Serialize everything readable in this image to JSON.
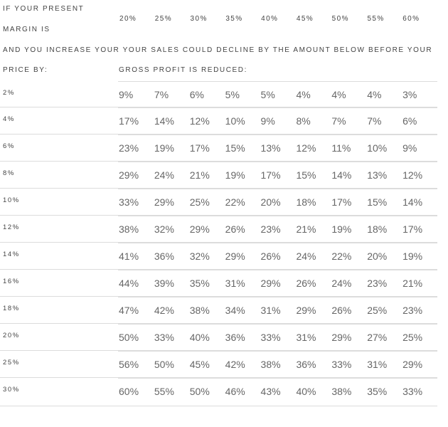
{
  "header": {
    "line1": "IF YOUR PRESENT",
    "line2": "MARGIN IS",
    "line3": "AND YOU INCREASE YOUR YOUR SALES COULD DECLINE BY THE AMOUNT BELOW BEFORE YOUR",
    "line4": "PRICE BY:",
    "reduced": "GROSS PROFIT IS REDUCED:"
  },
  "margins": [
    "20%",
    "25%",
    "30%",
    "35%",
    "40%",
    "45%",
    "50%",
    "55%",
    "60%"
  ],
  "rows": [
    {
      "increase": "2%",
      "values": [
        "9%",
        "7%",
        "6%",
        "5%",
        "5%",
        "4%",
        "4%",
        "4%",
        "3%"
      ]
    },
    {
      "increase": "4%",
      "values": [
        "17%",
        "14%",
        "12%",
        "10%",
        "9%",
        "8%",
        "7%",
        "7%",
        "6%"
      ]
    },
    {
      "increase": "6%",
      "values": [
        "23%",
        "19%",
        "17%",
        "15%",
        "13%",
        "12%",
        "11%",
        "10%",
        "9%"
      ]
    },
    {
      "increase": "8%",
      "values": [
        "29%",
        "24%",
        "21%",
        "19%",
        "17%",
        "15%",
        "14%",
        "13%",
        "12%"
      ]
    },
    {
      "increase": "10%",
      "values": [
        "33%",
        "29%",
        "25%",
        "22%",
        "20%",
        "18%",
        "17%",
        "15%",
        "14%"
      ]
    },
    {
      "increase": "12%",
      "values": [
        "38%",
        "32%",
        "29%",
        "26%",
        "23%",
        "21%",
        "19%",
        "18%",
        "17%"
      ]
    },
    {
      "increase": "14%",
      "values": [
        "41%",
        "36%",
        "32%",
        "29%",
        "26%",
        "24%",
        "22%",
        "20%",
        "19%"
      ]
    },
    {
      "increase": "16%",
      "values": [
        "44%",
        "39%",
        "35%",
        "31%",
        "29%",
        "26%",
        "24%",
        "23%",
        "21%"
      ]
    },
    {
      "increase": "18%",
      "values": [
        "47%",
        "42%",
        "38%",
        "34%",
        "31%",
        "29%",
        "26%",
        "25%",
        "23%"
      ]
    },
    {
      "increase": "20%",
      "values": [
        "50%",
        "33%",
        "40%",
        "36%",
        "33%",
        "31%",
        "29%",
        "27%",
        "25%"
      ]
    },
    {
      "increase": "25%",
      "values": [
        "56%",
        "50%",
        "45%",
        "42%",
        "38%",
        "36%",
        "33%",
        "31%",
        "29%"
      ]
    },
    {
      "increase": "30%",
      "values": [
        "60%",
        "55%",
        "50%",
        "46%",
        "43%",
        "40%",
        "38%",
        "35%",
        "33%"
      ]
    }
  ]
}
